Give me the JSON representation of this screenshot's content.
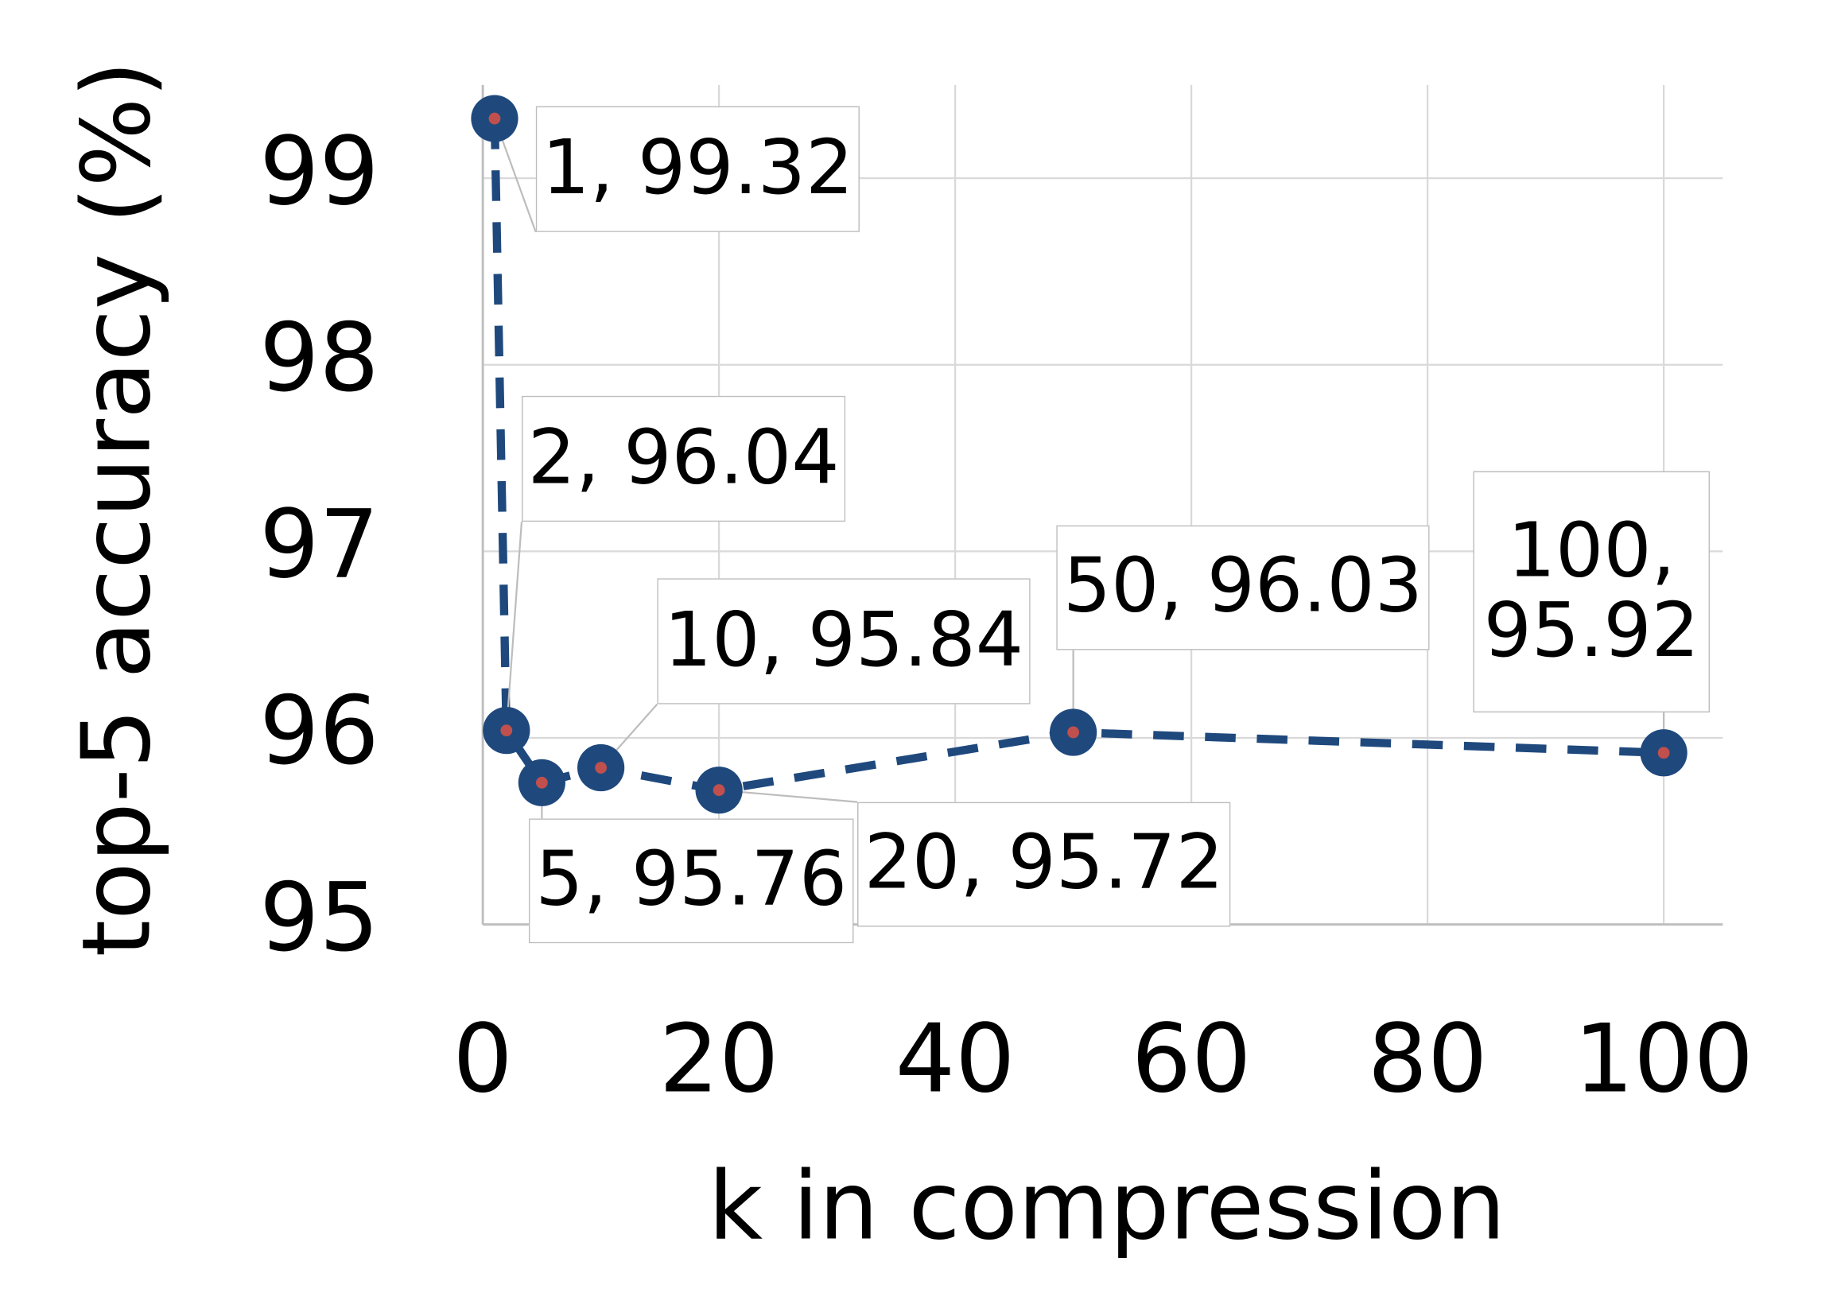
{
  "chart_data": {
    "type": "line",
    "xlabel": "k in compression",
    "ylabel": "top-5 accuracy (%)",
    "x": [
      1,
      2,
      5,
      10,
      20,
      50,
      100
    ],
    "series": [
      {
        "color": "#1f497d",
        "values": [
          99.32,
          96.04,
          95.76,
          95.84,
          95.72,
          96.03,
          95.92
        ],
        "value_labels": [
          "1, 99.32",
          "2, 96.04",
          "5, 95.76",
          "10, 95.84",
          "20, 95.72",
          "50, 96.03",
          "100, 95.92"
        ]
      }
    ],
    "xlim": [
      0,
      105
    ],
    "xticks": [
      0,
      20,
      40,
      60,
      80,
      100
    ],
    "ylim": [
      95,
      99.5
    ],
    "yticks": [
      95,
      96,
      97,
      98,
      99
    ],
    "grid": true
  }
}
